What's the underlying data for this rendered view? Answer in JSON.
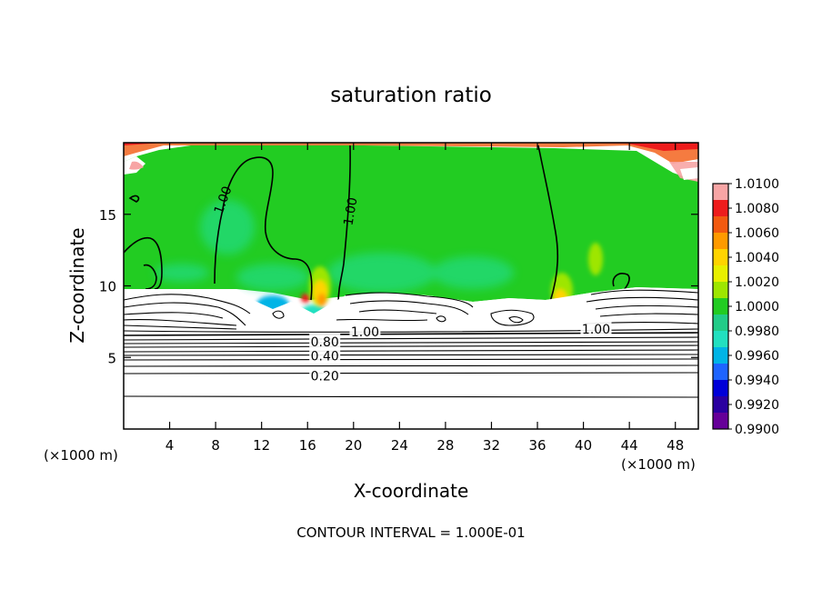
{
  "chart_data": {
    "type": "heatmap",
    "title": "saturation ratio",
    "xlabel": "X-coordinate",
    "ylabel": "Z-coordinate",
    "x_unit_left": "(×1000 m)",
    "x_unit_right": "(×1000 m)",
    "xlim": [
      0,
      50
    ],
    "ylim": [
      0,
      20
    ],
    "x_ticks": [
      4,
      8,
      12,
      16,
      20,
      24,
      28,
      32,
      36,
      40,
      44,
      48
    ],
    "x_tick_labels": [
      "4",
      "8",
      "12",
      "16",
      "20",
      "24",
      "28",
      "32",
      "36",
      "40",
      "44",
      "48"
    ],
    "y_ticks": [
      5,
      10,
      15
    ],
    "y_tick_labels": [
      "5",
      "10",
      "15"
    ],
    "colorbar": {
      "labels": [
        "1.0100",
        "1.0080",
        "1.0060",
        "1.0040",
        "1.0020",
        "1.0000",
        "0.9980",
        "0.9960",
        "0.9940",
        "0.9920",
        "0.9900"
      ],
      "colors": [
        "#f7a5a5",
        "#ee1c1c",
        "#f25a10",
        "#ff9a00",
        "#ffd400",
        "#e8f000",
        "#9ee600",
        "#22cc22",
        "#22cc88",
        "#22e0c0",
        "#00b4e6",
        "#1e64ff",
        "#0000d8",
        "#2a00a0",
        "#660099"
      ]
    },
    "contour_labels": [
      {
        "text": "1.00",
        "x": 8.6,
        "z": 16.0,
        "angle": -70
      },
      {
        "text": "1.00",
        "x": 19.7,
        "z": 15.2,
        "angle": -80
      },
      {
        "text": "1.00",
        "x": 21.0,
        "z": 6.8,
        "angle": 0
      },
      {
        "text": "1.00",
        "x": 41.1,
        "z": 7.0,
        "angle": 0
      },
      {
        "text": "0.80",
        "x": 17.5,
        "z": 6.1,
        "angle": 0
      },
      {
        "text": "0.40",
        "x": 17.5,
        "z": 5.1,
        "angle": 0
      },
      {
        "text": "0.20",
        "x": 17.5,
        "z": 3.7,
        "angle": 0
      }
    ],
    "grid": false,
    "legend": "colorbar-right"
  },
  "footer": "CONTOUR INTERVAL = 1.000E-01",
  "colors": {
    "field_green": "#22cc22",
    "frame": "#000000"
  }
}
